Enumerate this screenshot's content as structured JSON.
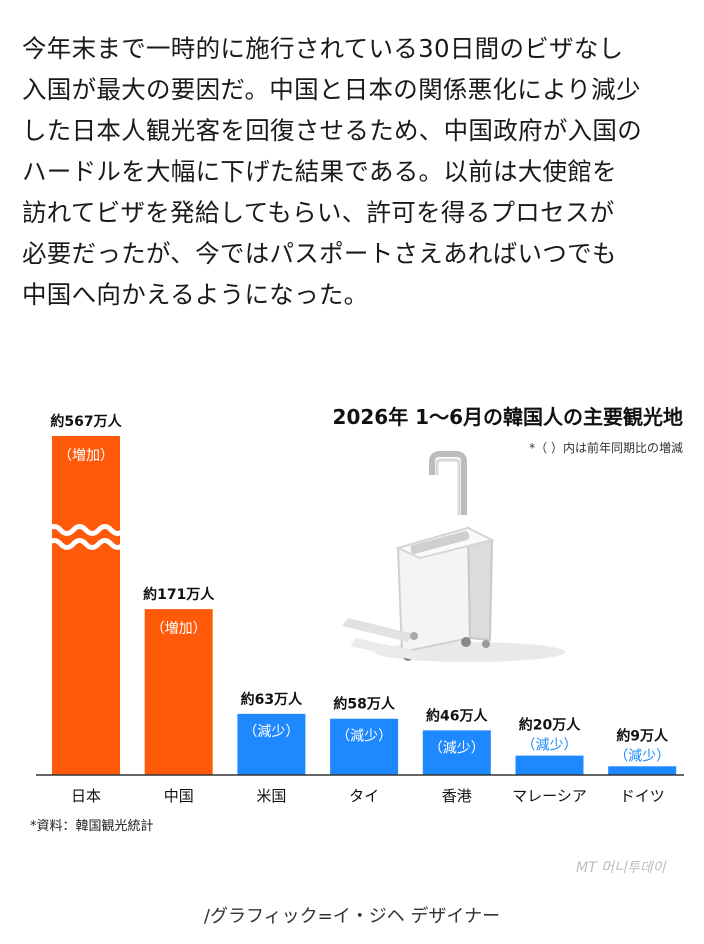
{
  "article": {
    "lines": [
      "今年末まで一時的に施行されている30日間のビザなし",
      "入国が最大の要因だ。中国と日本の関係悪化により減少",
      "した日本人観光客を回復させるため、中国政府が入国の",
      "ハードルを大幅に下げた結果である。以前は大使館を",
      "訪れてビザを発給してもらい、許可を得るプロセスが",
      "必要だったが、今ではパスポートさえあればいつでも",
      "中国へ向かえるようになった。"
    ]
  },
  "chart_data": {
    "type": "bar",
    "title": "2026年 1～6月の韓国人の主要観光地",
    "note": "*（ ）内は前年同期比の増減",
    "categories": [
      "日本",
      "中国",
      "米国",
      "タイ",
      "香港",
      "マレーシア",
      "ドイツ"
    ],
    "values": [
      567,
      171,
      63,
      58,
      46,
      20,
      9
    ],
    "value_labels": [
      "約567万人",
      "約171万人",
      "約63万人",
      "約58万人",
      "約46万人",
      "約20万人",
      "約9万人"
    ],
    "changes": [
      "（増加）",
      "（増加）",
      "（減少）",
      "（減少）",
      "（減少）",
      "（減少）",
      "（減少）"
    ],
    "axis_break": true,
    "colors": {
      "increase": "#ff5a0a",
      "decrease": "#1e88ff",
      "decrease_text": "#1e88ff",
      "axis": "#333333"
    },
    "source": "*資料：韓国観光統計"
  },
  "watermark": "MT 머니투데이",
  "credit": "/グラフィック=イ・ジヘ デザイナー"
}
